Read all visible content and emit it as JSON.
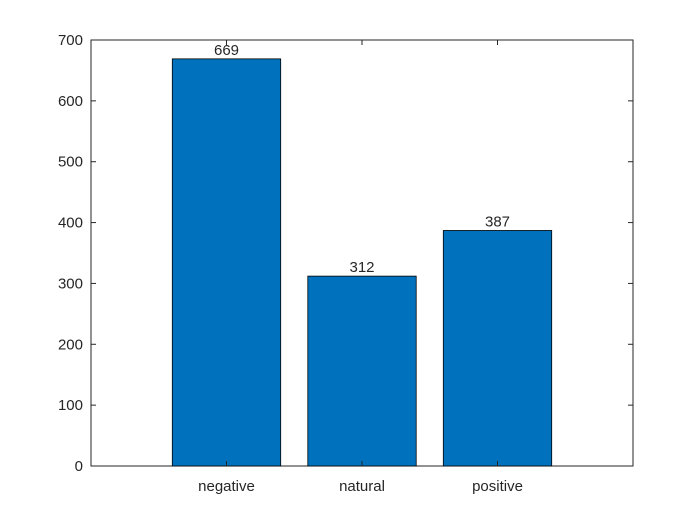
{
  "chart_data": {
    "type": "bar",
    "categories": [
      "negative",
      "natural",
      "positive"
    ],
    "values": [
      669,
      312,
      387
    ],
    "data_labels": [
      "669",
      "312",
      "387"
    ],
    "title": "",
    "xlabel": "",
    "ylabel": "",
    "ylim": [
      0,
      700
    ],
    "yticks": [
      0,
      100,
      200,
      300,
      400,
      500,
      600,
      700
    ],
    "xlim": [
      0,
      4
    ],
    "grid": false,
    "legend": "none",
    "colors": {
      "bar": "#0072BD",
      "bar_edge": "#000000",
      "axes": "#262626",
      "background": "#ffffff"
    }
  }
}
